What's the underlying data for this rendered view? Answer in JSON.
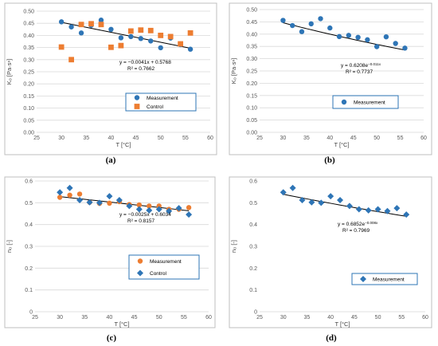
{
  "colors": {
    "blue": "#2e75b6",
    "orange": "#ed7d31",
    "trend": "#000000"
  },
  "chart_data": [
    {
      "id": "a",
      "type": "scatter",
      "caption": "(a)",
      "xlabel": "T [°C]",
      "ylabel": "K₀ [Pa·sⁿ]",
      "xlim": [
        25,
        60
      ],
      "ylim": [
        0,
        0.5
      ],
      "xticks": [
        25,
        30,
        35,
        40,
        45,
        50,
        55,
        60
      ],
      "yticks": [
        0,
        0.05,
        0.1,
        0.15,
        0.2,
        0.25,
        0.3,
        0.35,
        0.4,
        0.45,
        0.5
      ],
      "ytick_labels": [
        "0.00",
        "0.05",
        "0.10",
        "0.15",
        "0.20",
        "0.25",
        "0.30",
        "0.35",
        "0.40",
        "0.45",
        "0.50"
      ],
      "grid": true,
      "legend": "bottom-right",
      "equation": "y = −0.0041x + 0.5768",
      "r2": "R² = 0.7662",
      "trend": {
        "kind": "linear",
        "a": -0.0041,
        "b": 0.5768,
        "x": [
          30,
          56
        ]
      },
      "series": [
        {
          "name": "Measurement",
          "marker": "circle",
          "color": "#2e75b6",
          "x": [
            30,
            32,
            34,
            36,
            38,
            40,
            42,
            44,
            46,
            48,
            50,
            52,
            54,
            56
          ],
          "y": [
            0.456,
            0.435,
            0.41,
            0.442,
            0.463,
            0.425,
            0.39,
            0.395,
            0.387,
            0.377,
            0.349,
            0.389,
            0.362,
            0.343
          ]
        },
        {
          "name": "Control",
          "marker": "square",
          "color": "#ed7d31",
          "x": [
            30,
            32,
            34,
            36,
            38,
            40,
            42,
            44,
            46,
            48,
            50,
            52,
            54,
            56
          ],
          "y": [
            0.352,
            0.3,
            0.445,
            0.448,
            0.445,
            0.351,
            0.358,
            0.418,
            0.422,
            0.42,
            0.4,
            0.395,
            0.365,
            0.41
          ]
        }
      ]
    },
    {
      "id": "b",
      "type": "scatter",
      "caption": "(b)",
      "xlabel": "T [°C]",
      "ylabel": "K₀ [Pa·sⁿ]",
      "xlim": [
        25,
        60
      ],
      "ylim": [
        0,
        0.5
      ],
      "xticks": [
        25,
        30,
        35,
        40,
        45,
        50,
        55,
        60
      ],
      "yticks": [
        0,
        0.05,
        0.1,
        0.15,
        0.2,
        0.25,
        0.3,
        0.35,
        0.4,
        0.45,
        0.5
      ],
      "ytick_labels": [
        "0.00",
        "0.05",
        "0.10",
        "0.15",
        "0.20",
        "0.25",
        "0.30",
        "0.35",
        "0.40",
        "0.45",
        "0.50"
      ],
      "grid": true,
      "legend": "bottom-right",
      "equation": "y = 0.6208e",
      "equation_exp": "−0.011x",
      "r2": "R² = 0.7737",
      "trend": {
        "kind": "exp",
        "a": 0.6208,
        "b": -0.011,
        "x": [
          30,
          56
        ]
      },
      "series": [
        {
          "name": "Measurement",
          "marker": "circle",
          "color": "#2e75b6",
          "x": [
            30,
            32,
            34,
            36,
            38,
            40,
            42,
            44,
            46,
            48,
            50,
            52,
            54,
            56
          ],
          "y": [
            0.456,
            0.435,
            0.41,
            0.442,
            0.463,
            0.425,
            0.39,
            0.395,
            0.387,
            0.377,
            0.349,
            0.389,
            0.362,
            0.343
          ]
        }
      ]
    },
    {
      "id": "c",
      "type": "scatter",
      "caption": "(c)",
      "xlabel": "T [°C]",
      "ylabel": "n₀ [-]",
      "xlim": [
        25,
        60
      ],
      "ylim": [
        0,
        0.6
      ],
      "xticks": [
        25,
        30,
        35,
        40,
        45,
        50,
        55,
        60
      ],
      "yticks": [
        0,
        0.1,
        0.2,
        0.3,
        0.4,
        0.5,
        0.6
      ],
      "ytick_labels": [
        "0",
        "0.1",
        "0.2",
        "0.3",
        "0.4",
        "0.5",
        "0.6"
      ],
      "grid": true,
      "legend": "bottom-right",
      "equation": "y = −0.0025x + 0.6034",
      "r2": "R² = 0.8157",
      "trend": {
        "kind": "linear",
        "a": -0.0025,
        "b": 0.6034,
        "x": [
          30,
          56
        ]
      },
      "series": [
        {
          "name": "Measurement",
          "marker": "circle",
          "color": "#ed7d31",
          "x": [
            30,
            32,
            34,
            36,
            38,
            40,
            42,
            44,
            46,
            48,
            50,
            52,
            54,
            56
          ],
          "y": [
            0.525,
            0.535,
            0.54,
            0.502,
            0.497,
            0.498,
            0.505,
            0.492,
            0.49,
            0.485,
            0.485,
            0.47,
            0.47,
            0.478
          ]
        },
        {
          "name": "Control",
          "marker": "diamond",
          "color": "#2e75b6",
          "x": [
            30,
            32,
            34,
            36,
            38,
            40,
            42,
            44,
            46,
            48,
            50,
            52,
            54,
            56
          ],
          "y": [
            0.548,
            0.568,
            0.512,
            0.502,
            0.5,
            0.53,
            0.512,
            0.485,
            0.47,
            0.465,
            0.47,
            0.462,
            0.475,
            0.446
          ]
        }
      ]
    },
    {
      "id": "d",
      "type": "scatter",
      "caption": "(d)",
      "xlabel": "T [°C]",
      "ylabel": "n₀ [-]",
      "xlim": [
        25,
        60
      ],
      "ylim": [
        0,
        0.6
      ],
      "xticks": [
        25,
        30,
        35,
        40,
        45,
        50,
        55,
        60
      ],
      "yticks": [
        0,
        0.1,
        0.2,
        0.3,
        0.4,
        0.5,
        0.6
      ],
      "ytick_labels": [
        "0",
        "0.1",
        "0.2",
        "0.3",
        "0.4",
        "0.5",
        "0.6"
      ],
      "grid": false,
      "legend": "bottom-right",
      "equation": "y = 0.6852e",
      "equation_exp": "−0.008x",
      "r2": "R² = 0.7969",
      "trend": {
        "kind": "exp",
        "a": 0.6852,
        "b": -0.008,
        "x": [
          30,
          56
        ]
      },
      "series": [
        {
          "name": "Measurement",
          "marker": "diamond",
          "color": "#2e75b6",
          "x": [
            30,
            32,
            34,
            36,
            38,
            40,
            42,
            44,
            46,
            48,
            50,
            52,
            54,
            56
          ],
          "y": [
            0.548,
            0.568,
            0.512,
            0.502,
            0.5,
            0.53,
            0.512,
            0.485,
            0.47,
            0.465,
            0.47,
            0.462,
            0.475,
            0.446
          ]
        }
      ]
    }
  ]
}
